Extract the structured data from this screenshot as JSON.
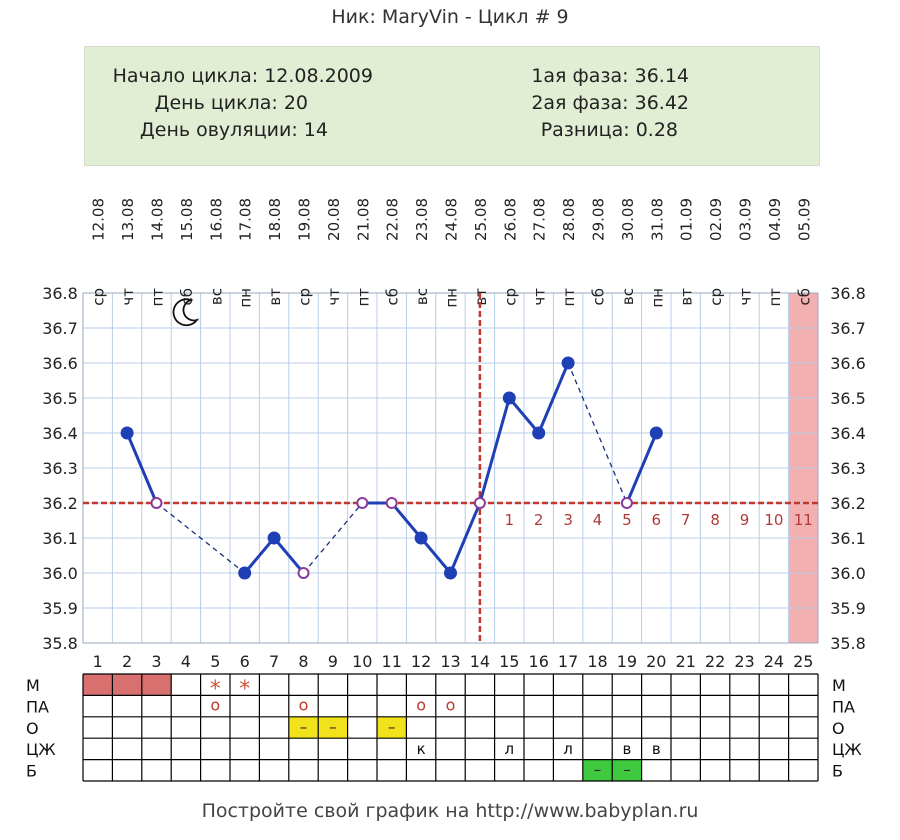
{
  "header": {
    "title": "Ник: MaryVin - Цикл # 9"
  },
  "info": {
    "cycle_start": "Начало цикла: 12.08.2009",
    "cycle_day": "День цикла: 20",
    "ovulation_day": "День овуляции: 14",
    "phase1": "1ая фаза: 36.14",
    "phase2": "2ая фаза: 36.42",
    "difference": "Разница: 0.28"
  },
  "footer": {
    "text": "Постройте свой график на http://www.babyplan.ru"
  },
  "chart_data": {
    "type": "line",
    "title": "",
    "xlabel": "",
    "ylabel": "",
    "ylim": [
      35.8,
      36.8
    ],
    "yticks": [
      "35.8",
      "35.9",
      "36.0",
      "36.1",
      "36.2",
      "36.3",
      "36.4",
      "36.5",
      "36.6",
      "36.7",
      "36.8"
    ],
    "cycle_days": [
      "1",
      "2",
      "3",
      "4",
      "5",
      "6",
      "7",
      "8",
      "9",
      "10",
      "11",
      "12",
      "13",
      "14",
      "15",
      "16",
      "17",
      "18",
      "19",
      "20",
      "21",
      "22",
      "23",
      "24",
      "25"
    ],
    "dates": [
      "12.08",
      "13.08",
      "14.08",
      "15.08",
      "16.08",
      "17.08",
      "18.08",
      "19.08",
      "20.08",
      "21.08",
      "22.08",
      "23.08",
      "24.08",
      "25.08",
      "26.08",
      "27.08",
      "28.08",
      "29.08",
      "30.08",
      "31.08",
      "01.09",
      "02.09",
      "03.09",
      "04.09",
      "05.09"
    ],
    "weekdays": [
      "ср",
      "чт",
      "пт",
      "сб",
      "вс",
      "пн",
      "вт",
      "ср",
      "чт",
      "пт",
      "сб",
      "вс",
      "пн",
      "вт",
      "ср",
      "чт",
      "пт",
      "сб",
      "вс",
      "пн",
      "вт",
      "ср",
      "чт",
      "пт",
      "сб"
    ],
    "temperature": [
      null,
      36.4,
      36.2,
      null,
      null,
      36.0,
      36.1,
      36.0,
      null,
      36.2,
      36.2,
      36.1,
      36.0,
      36.2,
      36.5,
      36.4,
      36.6,
      null,
      36.2,
      36.4,
      null,
      null,
      null,
      null,
      null
    ],
    "open_markers": [
      3,
      8,
      10,
      11,
      14,
      19
    ],
    "coverline": 36.2,
    "ovulation_day": 14,
    "post_ovulation_numbers": [
      "1",
      "2",
      "3",
      "4",
      "5",
      "6",
      "7",
      "8",
      "9",
      "10",
      "11"
    ],
    "highlighted_day": 25,
    "moon_day": 4,
    "colors": {
      "line": "#1f3fb5",
      "grid": "#b9cde8",
      "coverline": "#c0392b",
      "ovulation": "#c0392b",
      "menstruation": "#d97070",
      "highlight": "#f3b0b0",
      "yellow": "#f2e21b",
      "green": "#3ec93e",
      "post_numbers": "#b03a3a"
    },
    "table": {
      "rows": [
        "М",
        "ПА",
        "О",
        "ЦЖ",
        "Б"
      ],
      "cells": [
        {
          "row": 0,
          "day": 1,
          "fill": "menstruation",
          "text": ""
        },
        {
          "row": 0,
          "day": 2,
          "fill": "menstruation",
          "text": ""
        },
        {
          "row": 0,
          "day": 3,
          "fill": "menstruation",
          "text": ""
        },
        {
          "row": 0,
          "day": 5,
          "fill": "",
          "text": "*"
        },
        {
          "row": 0,
          "day": 6,
          "fill": "",
          "text": "*"
        },
        {
          "row": 1,
          "day": 5,
          "fill": "",
          "text": "o"
        },
        {
          "row": 1,
          "day": 8,
          "fill": "",
          "text": "o"
        },
        {
          "row": 1,
          "day": 12,
          "fill": "",
          "text": "o"
        },
        {
          "row": 1,
          "day": 13,
          "fill": "",
          "text": "o"
        },
        {
          "row": 2,
          "day": 8,
          "fill": "yellow",
          "text": "–"
        },
        {
          "row": 2,
          "day": 9,
          "fill": "yellow",
          "text": "–"
        },
        {
          "row": 2,
          "day": 11,
          "fill": "yellow",
          "text": "–"
        },
        {
          "row": 3,
          "day": 12,
          "fill": "",
          "text": "к"
        },
        {
          "row": 3,
          "day": 15,
          "fill": "",
          "text": "л"
        },
        {
          "row": 3,
          "day": 17,
          "fill": "",
          "text": "л"
        },
        {
          "row": 3,
          "day": 19,
          "fill": "",
          "text": "в"
        },
        {
          "row": 3,
          "day": 20,
          "fill": "",
          "text": "в"
        },
        {
          "row": 4,
          "day": 18,
          "fill": "green",
          "text": "–"
        },
        {
          "row": 4,
          "day": 19,
          "fill": "green",
          "text": "–"
        }
      ]
    }
  }
}
